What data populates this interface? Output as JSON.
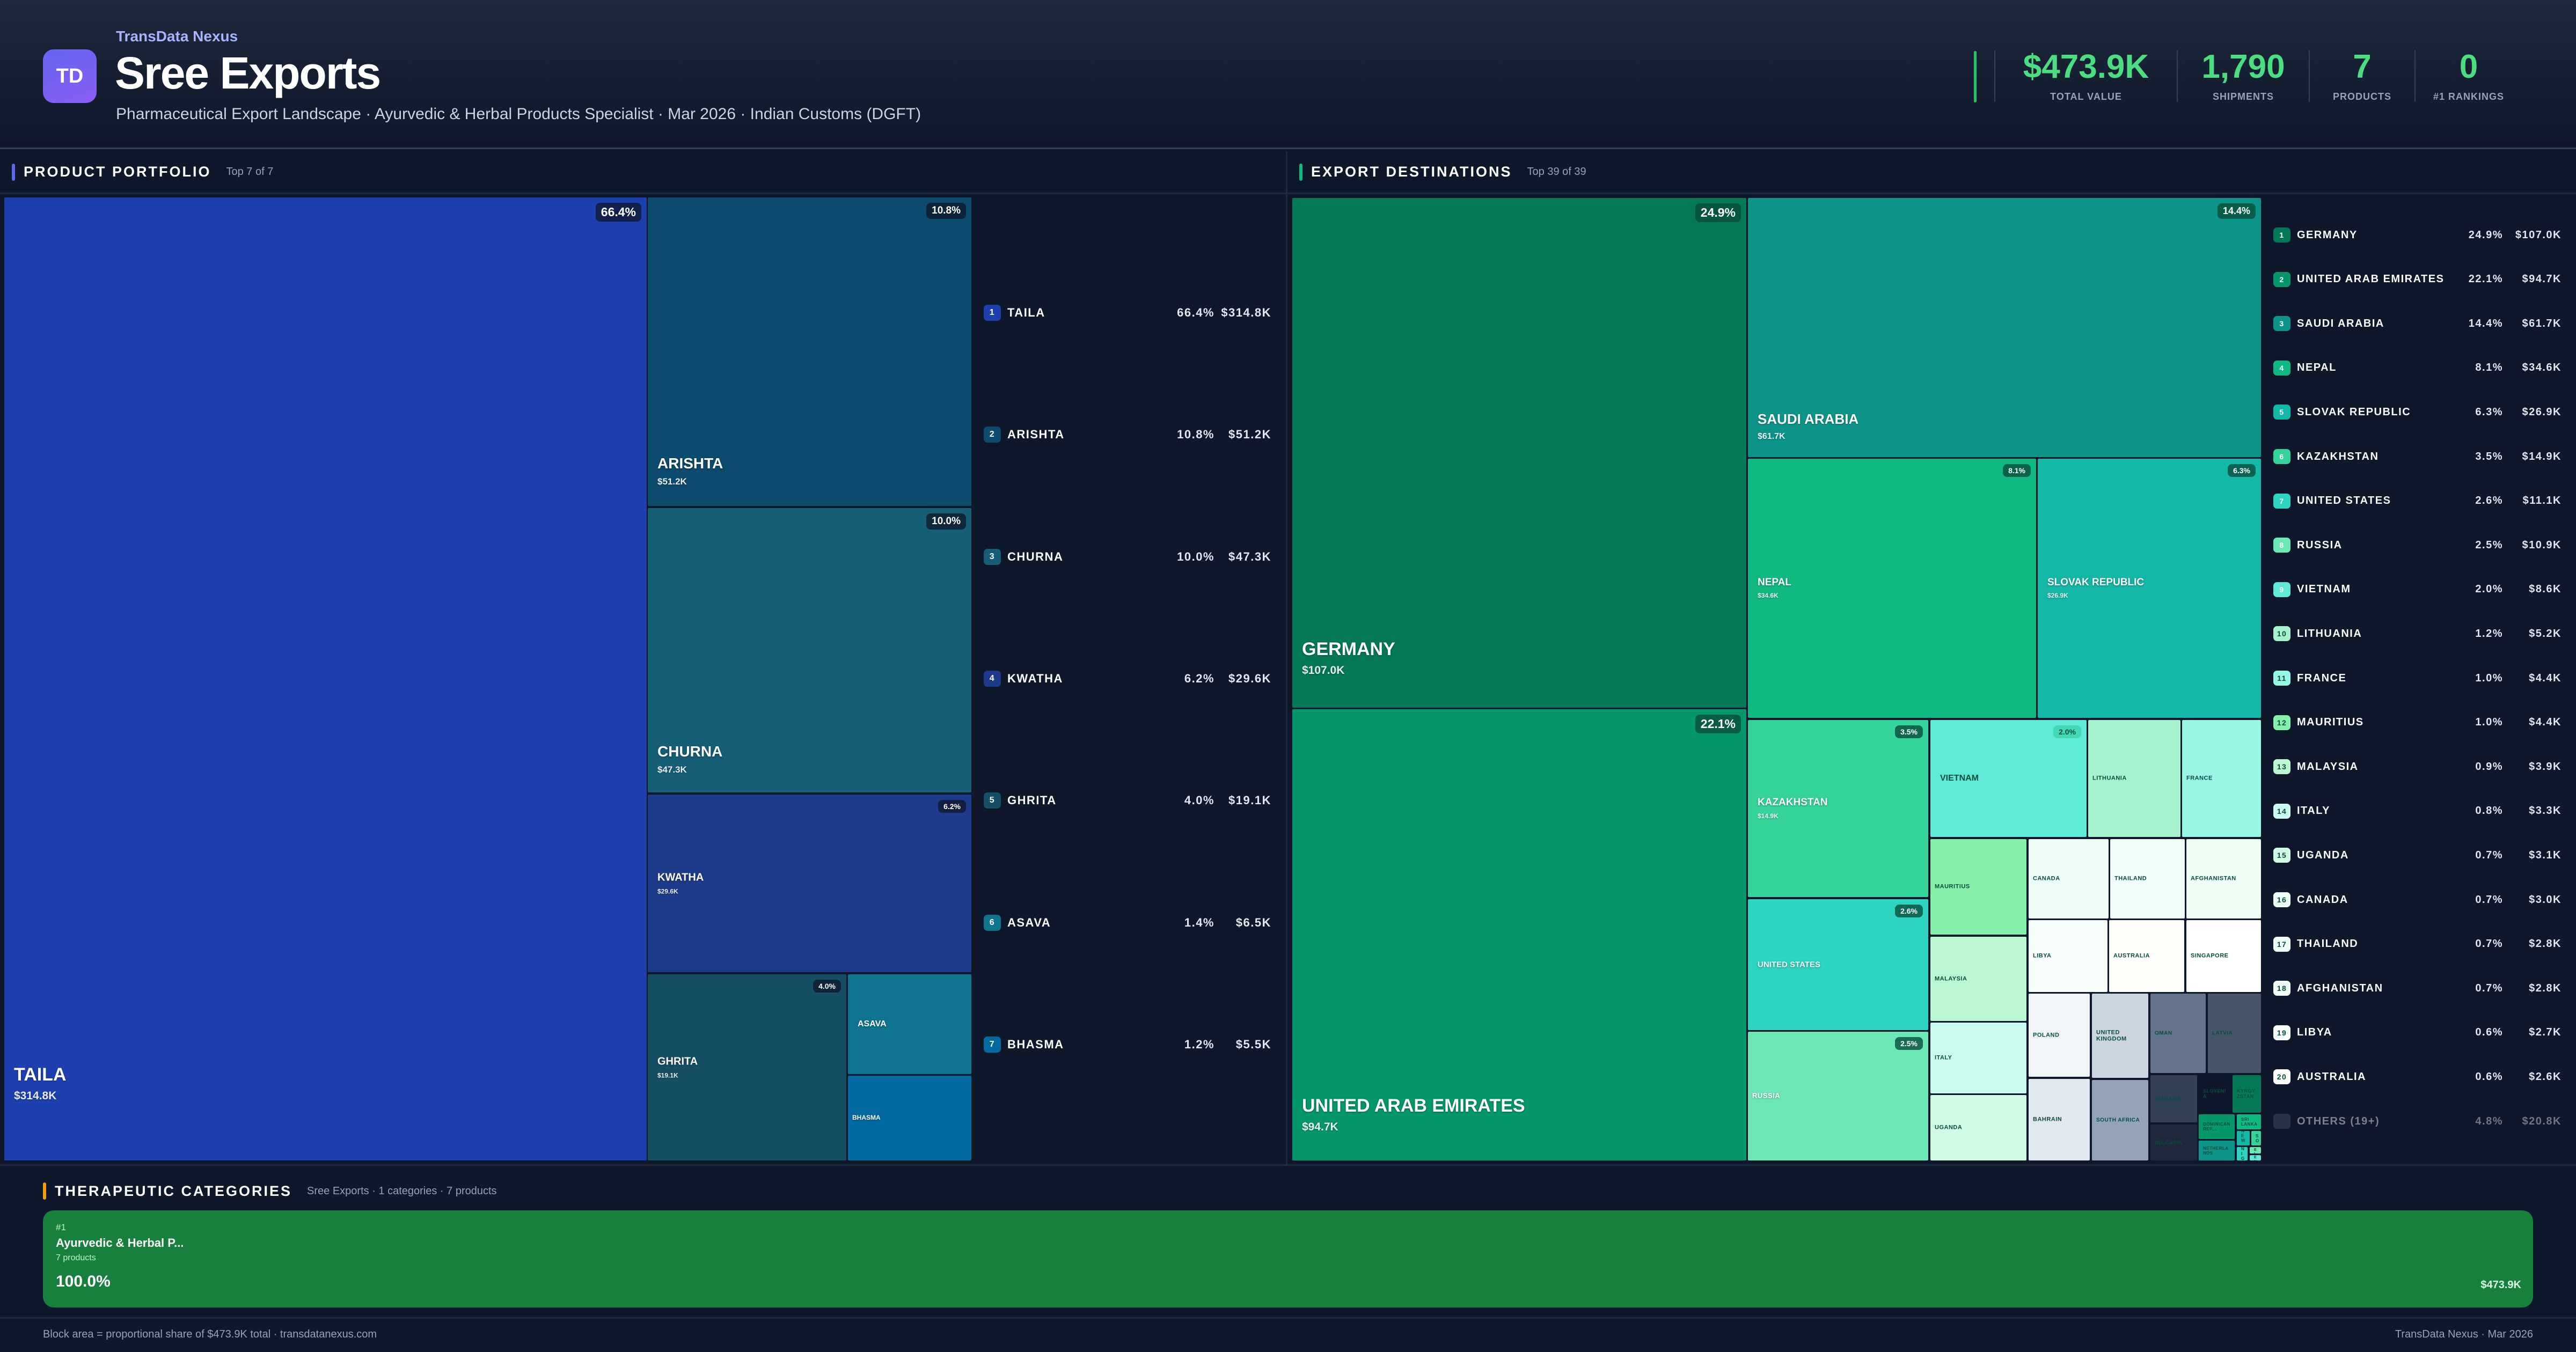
{
  "header": {
    "brand": "TransData Nexus",
    "logo_text": "TD",
    "title": "Sree Exports",
    "subtitle": "Pharmaceutical Export Landscape · Ayurvedic & Herbal Products Specialist · Mar 2026 · Indian Customs (DGFT)"
  },
  "kpis": [
    {
      "value": "$473.9K",
      "label": "TOTAL VALUE"
    },
    {
      "value": "1,790",
      "label": "SHIPMENTS"
    },
    {
      "value": "7",
      "label": "PRODUCTS"
    },
    {
      "value": "0",
      "label": "#1 RANKINGS"
    }
  ],
  "colors": {
    "accent_products": "#6366f1",
    "accent_destinations": "#10b981",
    "accent_categories": "#f59e0b",
    "kpi": "#4ade80",
    "category_block": "#16803c"
  },
  "products": {
    "title": "PRODUCT PORTFOLIO",
    "subtitle": "Top 7 of 7",
    "items": [
      {
        "rank": "1",
        "name": "TAILA",
        "pct": "66.4%",
        "value": "$314.8K",
        "color": "#1e40af"
      },
      {
        "rank": "2",
        "name": "ARISHTA",
        "pct": "10.8%",
        "value": "$51.2K",
        "color": "#0c4a6e"
      },
      {
        "rank": "3",
        "name": "CHURNA",
        "pct": "10.0%",
        "value": "$47.3K",
        "color": "#155e75"
      },
      {
        "rank": "4",
        "name": "KWATHA",
        "pct": "6.2%",
        "value": "$29.6K",
        "color": "#1e3a8a"
      },
      {
        "rank": "5",
        "name": "GHRITA",
        "pct": "4.0%",
        "value": "$19.1K",
        "color": "#164e63"
      },
      {
        "rank": "6",
        "name": "ASAVA",
        "pct": "1.4%",
        "value": "$6.5K",
        "color": "#0e7490"
      },
      {
        "rank": "7",
        "name": "BHASMA",
        "pct": "1.2%",
        "value": "$5.5K",
        "color": "#0369a1"
      }
    ]
  },
  "destinations": {
    "title": "EXPORT DESTINATIONS",
    "subtitle": "Top 39 of 39",
    "items": [
      {
        "rank": "1",
        "name": "GERMANY",
        "pct": "24.9%",
        "value": "$107.0K",
        "color": "#047857"
      },
      {
        "rank": "2",
        "name": "UNITED ARAB EMIRATES",
        "pct": "22.1%",
        "value": "$94.7K",
        "color": "#059669"
      },
      {
        "rank": "3",
        "name": "SAUDI ARABIA",
        "pct": "14.4%",
        "value": "$61.7K",
        "color": "#0d9488"
      },
      {
        "rank": "4",
        "name": "NEPAL",
        "pct": "8.1%",
        "value": "$34.6K",
        "color": "#10b981"
      },
      {
        "rank": "5",
        "name": "SLOVAK REPUBLIC",
        "pct": "6.3%",
        "value": "$26.9K",
        "color": "#14b8a6"
      },
      {
        "rank": "6",
        "name": "KAZAKHSTAN",
        "pct": "3.5%",
        "value": "$14.9K",
        "color": "#34d399"
      },
      {
        "rank": "7",
        "name": "UNITED STATES",
        "pct": "2.6%",
        "value": "$11.1K",
        "color": "#2dd4bf"
      },
      {
        "rank": "8",
        "name": "RUSSIA",
        "pct": "2.5%",
        "value": "$10.9K",
        "color": "#6ee7b7"
      },
      {
        "rank": "9",
        "name": "VIETNAM",
        "pct": "2.0%",
        "value": "$8.6K",
        "color": "#5eead4"
      },
      {
        "rank": "10",
        "name": "LITHUANIA",
        "pct": "1.2%",
        "value": "$5.2K",
        "color": "#a7f3d0"
      },
      {
        "rank": "11",
        "name": "FRANCE",
        "pct": "1.0%",
        "value": "$4.4K",
        "color": "#99f6e4"
      },
      {
        "rank": "12",
        "name": "MAURITIUS",
        "pct": "1.0%",
        "value": "$4.4K",
        "color": "#86efac"
      },
      {
        "rank": "13",
        "name": "MALAYSIA",
        "pct": "0.9%",
        "value": "$3.9K",
        "color": "#bbf7d0"
      },
      {
        "rank": "14",
        "name": "ITALY",
        "pct": "0.8%",
        "value": "$3.3K",
        "color": "#ccfbf1"
      },
      {
        "rank": "15",
        "name": "UGANDA",
        "pct": "0.7%",
        "value": "$3.1K",
        "color": "#d1fae5"
      },
      {
        "rank": "16",
        "name": "CANADA",
        "pct": "0.7%",
        "value": "$3.0K",
        "color": "#ecfdf5"
      },
      {
        "rank": "17",
        "name": "THAILAND",
        "pct": "0.7%",
        "value": "$2.8K",
        "color": "#f0fdfa"
      },
      {
        "rank": "18",
        "name": "AFGHANISTAN",
        "pct": "0.7%",
        "value": "$2.8K",
        "color": "#f0fdf4"
      },
      {
        "rank": "19",
        "name": "LIBYA",
        "pct": "0.6%",
        "value": "$2.7K",
        "color": "#f7fef9"
      },
      {
        "rank": "20",
        "name": "AUSTRALIA",
        "pct": "0.6%",
        "value": "$2.6K",
        "color": "#fefffa"
      }
    ],
    "others": {
      "name": "OTHERS (19+)",
      "pct": "4.8%",
      "value": "$20.8K",
      "color": "#475569"
    },
    "more_cells": [
      {
        "name": "SINGAPORE",
        "color": "#ffffff"
      },
      {
        "name": "POLAND",
        "color": "#f1f5f9"
      },
      {
        "name": "BAHRAIN",
        "color": "#e2e8f0"
      },
      {
        "name": "UNITED KINGDOM",
        "color": "#cbd5e1"
      },
      {
        "name": "SOUTH AFRICA",
        "color": "#94a3b8"
      },
      {
        "name": "OMAN",
        "color": "#64748b"
      },
      {
        "name": "LATVIA",
        "color": "#475569"
      },
      {
        "name": "TANZANIA",
        "color": "#334155"
      },
      {
        "name": "BULGARIA",
        "color": "#1e293b"
      },
      {
        "name": "SLOVENIA",
        "color": "#0f172a"
      },
      {
        "name": "KYRGYZSTAN",
        "color": "#047857"
      },
      {
        "name": "DOMINICAN REP...",
        "color": "#059669"
      },
      {
        "name": "NETHERLANDS",
        "color": "#0d9488"
      },
      {
        "name": "SRI LANKA",
        "color": "#10b981"
      },
      {
        "name": "NEW ...",
        "color": "#14b8a6"
      },
      {
        "name": "SO",
        "color": "#34d399"
      },
      {
        "name": "NIG",
        "color": "#2dd4bf"
      },
      {
        "name": "BEL",
        "color": "#6ee7b7"
      },
      {
        "name": "KEN",
        "color": "#5eead4"
      }
    ]
  },
  "categories": {
    "title": "THERAPEUTIC CATEGORIES",
    "subtitle": "Sree Exports · 1 categories · 7 products",
    "items": [
      {
        "rank": "#1",
        "name": "Ayurvedic & Herbal P...",
        "count": "7 products",
        "pct": "100.0%",
        "value": "$473.9K"
      }
    ]
  },
  "footer": {
    "left": "Block area = proportional share of $473.9K total · transdatanexus.com",
    "right": "TransData Nexus · Mar 2026"
  }
}
